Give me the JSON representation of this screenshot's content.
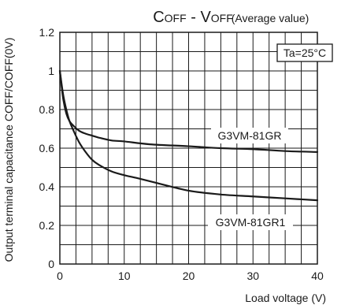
{
  "chart_data": {
    "type": "line",
    "title": "COFF - VOFF",
    "subtitle": "(Average value)",
    "xlabel": "Load voltage (V)",
    "ylabel": "Output terminal capacitance COFF/COFF(0V)",
    "xlim": [
      0,
      40
    ],
    "ylim": [
      0,
      1.2
    ],
    "x_ticks": [
      "0",
      "10",
      "20",
      "30",
      "40"
    ],
    "y_ticks": [
      "0",
      "0.2",
      "0.4",
      "0.6",
      "0.8",
      "1",
      "1.2"
    ],
    "grid": true,
    "annotation": "Ta=25°C",
    "series": [
      {
        "name": "G3VM-81GR",
        "x": [
          0,
          0.5,
          1,
          1.5,
          2,
          3,
          4,
          5,
          6,
          8,
          10,
          14,
          20,
          25,
          30,
          35,
          40
        ],
        "y": [
          1.0,
          0.86,
          0.78,
          0.74,
          0.72,
          0.69,
          0.675,
          0.665,
          0.655,
          0.64,
          0.635,
          0.62,
          0.61,
          0.6,
          0.595,
          0.585,
          0.58
        ]
      },
      {
        "name": "G3VM-81GR1",
        "x": [
          0,
          0.5,
          1,
          1.5,
          2,
          3,
          4,
          5,
          6,
          8,
          10,
          12,
          15,
          20,
          25,
          30,
          35,
          40
        ],
        "y": [
          1.0,
          0.88,
          0.8,
          0.74,
          0.7,
          0.63,
          0.58,
          0.54,
          0.515,
          0.48,
          0.46,
          0.445,
          0.42,
          0.38,
          0.36,
          0.35,
          0.34,
          0.33
        ]
      }
    ]
  }
}
